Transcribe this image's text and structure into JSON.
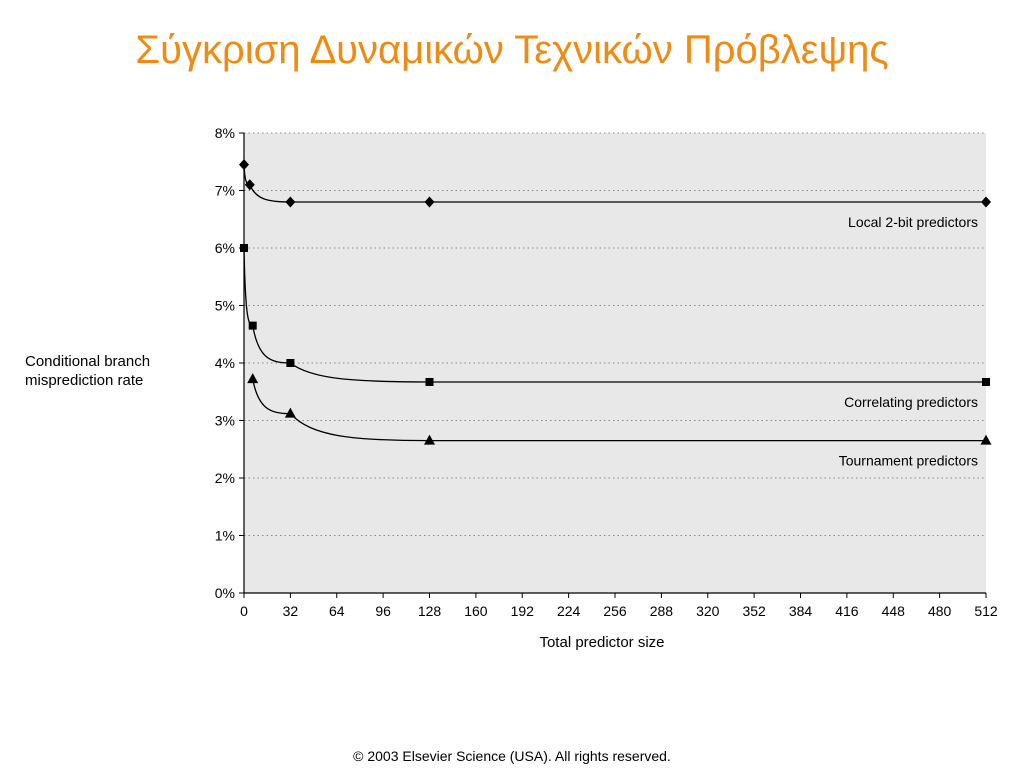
{
  "slide": {
    "title": "Σύγκριση Δυναμικών Τεχνικών Πρόβλεψης",
    "footer": "© 2003 Elsevier Science (USA). All rights reserved."
  },
  "chart_data": {
    "type": "line",
    "xlabel": "Total predictor size",
    "ylabel": "Conditional branch misprediction rate",
    "x_ticks": [
      0,
      32,
      64,
      96,
      128,
      160,
      192,
      224,
      256,
      288,
      320,
      352,
      384,
      416,
      448,
      480,
      512
    ],
    "y_ticks": [
      "0%",
      "1%",
      "2%",
      "3%",
      "4%",
      "5%",
      "6%",
      "7%",
      "8%"
    ],
    "xlim": [
      0,
      512
    ],
    "ylim": [
      0,
      8
    ],
    "grid": "horizontal dotted",
    "series": [
      {
        "name": "Local 2-bit predictors",
        "marker": "diamond",
        "points": [
          [
            0,
            7.45
          ],
          [
            4,
            7.1
          ],
          [
            32,
            6.8
          ],
          [
            128,
            6.8
          ],
          [
            512,
            6.8
          ]
        ]
      },
      {
        "name": "Correlating predictors",
        "marker": "square",
        "points": [
          [
            0,
            6.0
          ],
          [
            6,
            4.65
          ],
          [
            32,
            4.0
          ],
          [
            128,
            3.67
          ],
          [
            512,
            3.67
          ]
        ]
      },
      {
        "name": "Tournament predictors",
        "marker": "triangle",
        "points": [
          [
            6,
            3.72
          ],
          [
            32,
            3.12
          ],
          [
            128,
            2.65
          ],
          [
            512,
            2.65
          ]
        ]
      }
    ]
  }
}
